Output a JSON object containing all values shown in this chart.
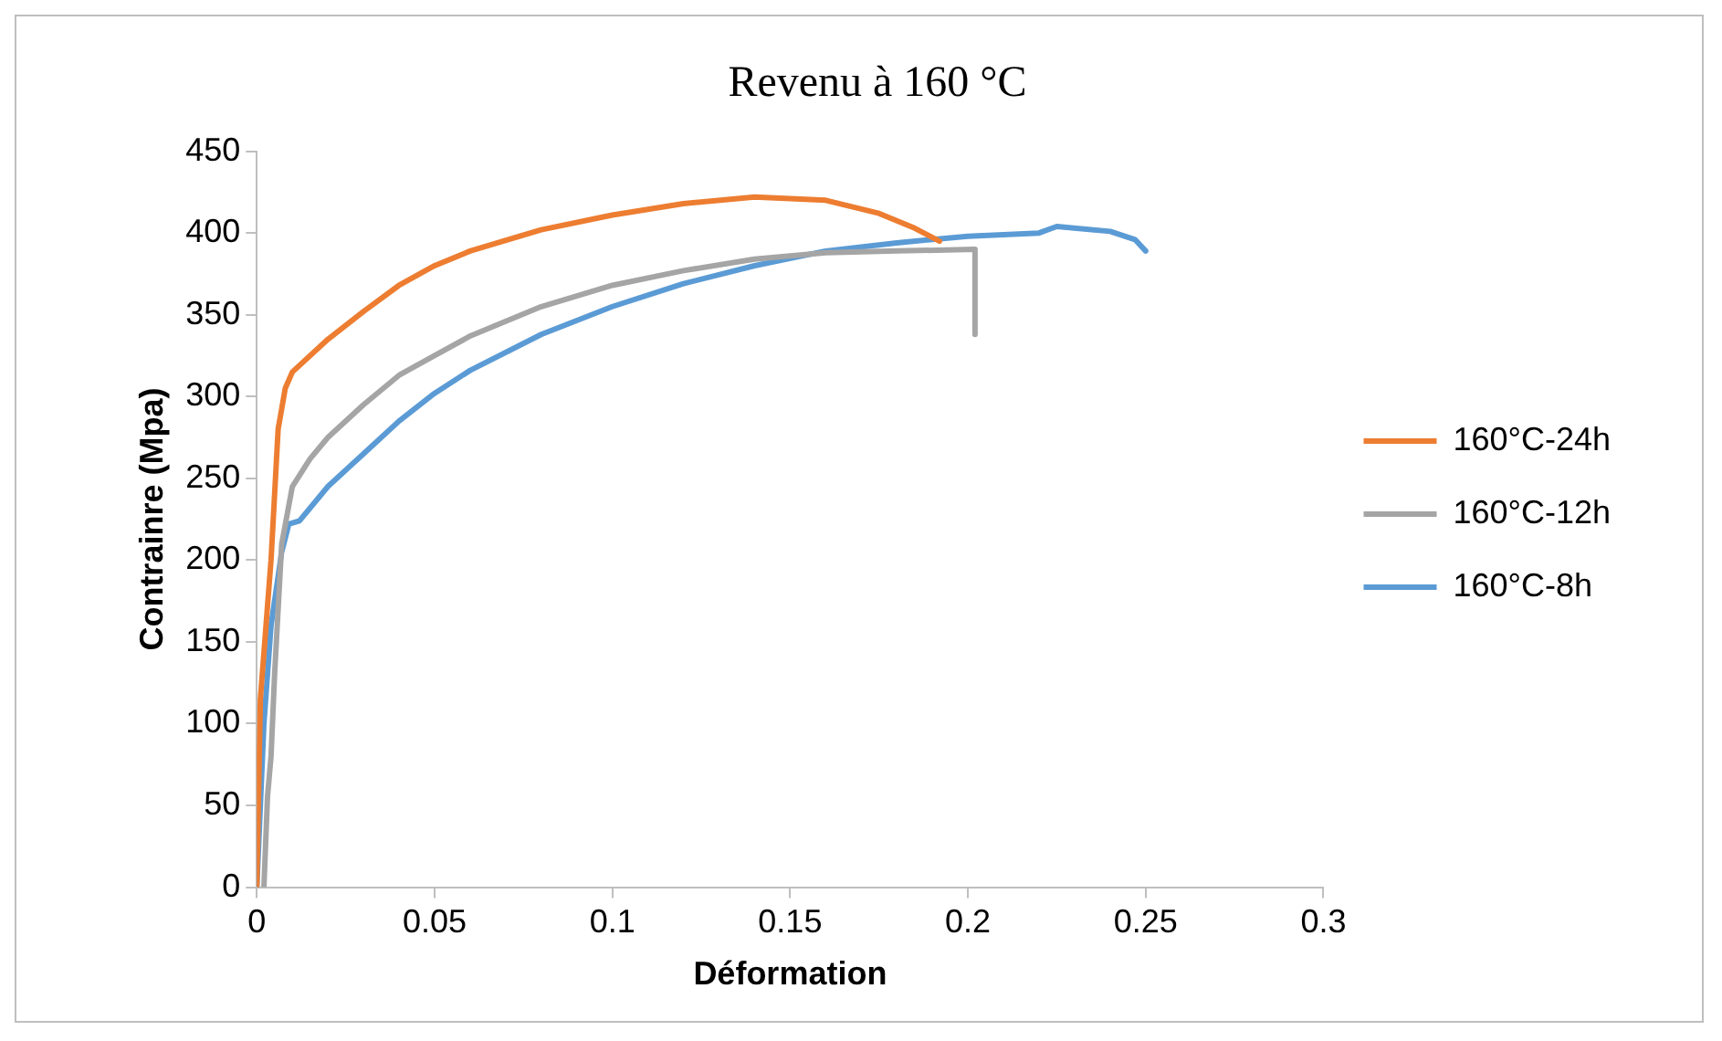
{
  "chart_data": {
    "type": "line",
    "title": "Revenu à 160 °C",
    "xlabel": "Déformation",
    "ylabel": "Contrainre (Mpa)",
    "xlim": [
      0,
      0.3
    ],
    "xticks": [
      0,
      0.05,
      0.1,
      0.15,
      0.2,
      0.25,
      0.3
    ],
    "ylim": [
      0,
      450
    ],
    "yticks": [
      0,
      50,
      100,
      150,
      200,
      250,
      300,
      350,
      400,
      450
    ],
    "grid": false,
    "legend": "right",
    "marker": "none",
    "line_style": "solid",
    "series": [
      {
        "name": "160°C-24h",
        "color": "#ed7d31",
        "x": [
          0,
          0.001,
          0.004,
          0.006,
          0.008,
          0.01,
          0.02,
          0.03,
          0.04,
          0.05,
          0.06,
          0.08,
          0.1,
          0.12,
          0.14,
          0.16,
          0.175,
          0.185,
          0.192
        ],
        "values": [
          0,
          115,
          200,
          280,
          305,
          315,
          335,
          352,
          368,
          380,
          389,
          402,
          411,
          418,
          422,
          420,
          412,
          403,
          395
        ]
      },
      {
        "name": "160°C-12h",
        "color": "#a5a5a5",
        "x": [
          0.002,
          0.003,
          0.004,
          0.005,
          0.007,
          0.01,
          0.015,
          0.02,
          0.03,
          0.04,
          0.05,
          0.06,
          0.08,
          0.1,
          0.12,
          0.14,
          0.16,
          0.18,
          0.202,
          0.202
        ],
        "values": [
          0,
          55,
          80,
          130,
          210,
          245,
          262,
          275,
          295,
          313,
          325,
          337,
          355,
          368,
          377,
          384,
          388,
          389,
          390,
          338
        ]
      },
      {
        "name": "160°C-8h",
        "color": "#5b9bd5",
        "x": [
          0,
          0.002,
          0.004,
          0.007,
          0.009,
          0.012,
          0.02,
          0.03,
          0.04,
          0.05,
          0.06,
          0.08,
          0.1,
          0.12,
          0.14,
          0.16,
          0.18,
          0.2,
          0.22,
          0.225,
          0.24,
          0.247,
          0.25
        ],
        "values": [
          0,
          100,
          160,
          205,
          222,
          224,
          245,
          265,
          285,
          302,
          316,
          338,
          355,
          369,
          380,
          389,
          394,
          398,
          400,
          404,
          401,
          396,
          389
        ]
      }
    ]
  }
}
